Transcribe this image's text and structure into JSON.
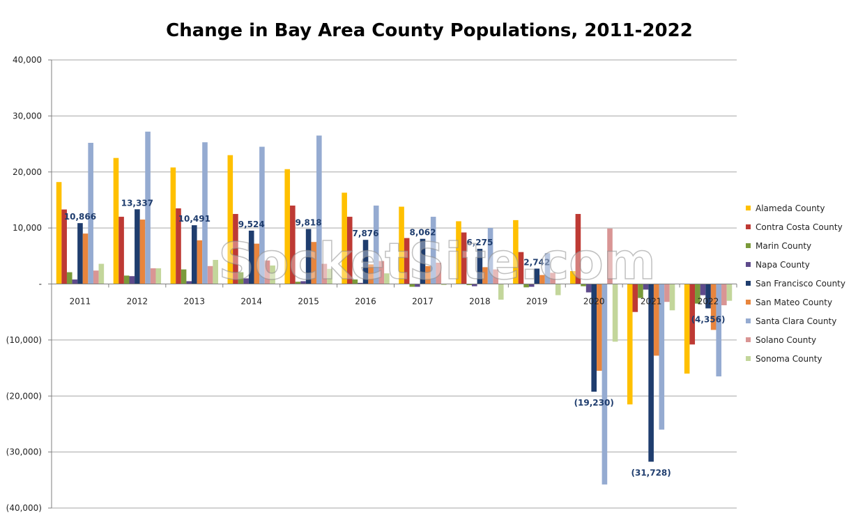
{
  "watermark": "SocketSite.com",
  "chart_data": {
    "type": "bar",
    "title": "Change in Bay Area County Populations, 2011-2022",
    "xlabel": "",
    "ylabel": "",
    "ylim": [
      -40000,
      40000
    ],
    "grid": true,
    "legend_position": "right",
    "y_ticks": [
      {
        "value": 40000,
        "label": "40,000"
      },
      {
        "value": 30000,
        "label": "30,000"
      },
      {
        "value": 20000,
        "label": "20,000"
      },
      {
        "value": 10000,
        "label": "10,000"
      },
      {
        "value": 0,
        "label": "-"
      },
      {
        "value": -10000,
        "label": "(10,000)"
      },
      {
        "value": -20000,
        "label": "(20,000)"
      },
      {
        "value": -30000,
        "label": "(30,000)"
      },
      {
        "value": -40000,
        "label": "(40,000)"
      }
    ],
    "categories": [
      "2011",
      "2012",
      "2013",
      "2014",
      "2015",
      "2016",
      "2017",
      "2018",
      "2019",
      "2020",
      "2021",
      "2022"
    ],
    "series": [
      {
        "name": "Alameda County",
        "color": "#FFC000",
        "values": [
          18200,
          22500,
          20800,
          23000,
          20500,
          16300,
          13800,
          11200,
          11400,
          2300,
          -21500,
          -16000
        ]
      },
      {
        "name": "Contra Costa County",
        "color": "#BE3A34",
        "values": [
          13300,
          12000,
          13500,
          12500,
          14000,
          12000,
          8200,
          9200,
          5700,
          12500,
          -5000,
          -10800
        ]
      },
      {
        "name": "Marin County",
        "color": "#7A9A3A",
        "values": [
          2100,
          1500,
          2600,
          2100,
          400,
          800,
          -500,
          -200,
          -600,
          -400,
          -2500,
          -3500
        ]
      },
      {
        "name": "Napa County",
        "color": "#5E4A8B",
        "values": [
          800,
          1400,
          500,
          1000,
          500,
          200,
          -500,
          -400,
          -500,
          -1500,
          -1000,
          -2000
        ]
      },
      {
        "name": "San Francisco County",
        "color": "#1F3D6E",
        "values": [
          10866,
          13337,
          10491,
          9524,
          9818,
          7876,
          8062,
          6275,
          2742,
          -19230,
          -31728,
          -4356
        ]
      },
      {
        "name": "San Mateo County",
        "color": "#E8853D",
        "values": [
          9000,
          11500,
          7800,
          7200,
          7500,
          3500,
          3200,
          3000,
          1600,
          -15500,
          -12800,
          -8200
        ]
      },
      {
        "name": "Santa Clara County",
        "color": "#95ABD1",
        "values": [
          25200,
          27200,
          25300,
          24500,
          26500,
          14000,
          12000,
          10000,
          5500,
          -35800,
          -26000,
          -16500
        ]
      },
      {
        "name": "Solano County",
        "color": "#D99594",
        "values": [
          2400,
          2800,
          3200,
          4200,
          3600,
          4100,
          3800,
          2600,
          2000,
          9900,
          -3200,
          -3800
        ]
      },
      {
        "name": "Sonoma County",
        "color": "#C3D69B",
        "values": [
          3600,
          2800,
          4300,
          3300,
          2700,
          1900,
          -200,
          -2800,
          -2000,
          -10300,
          -4700,
          -3000
        ]
      }
    ],
    "data_labels": [
      {
        "category": "2011",
        "series": "San Francisco County",
        "text": "10,866"
      },
      {
        "category": "2012",
        "series": "San Francisco County",
        "text": "13,337"
      },
      {
        "category": "2013",
        "series": "San Francisco County",
        "text": "10,491"
      },
      {
        "category": "2014",
        "series": "San Francisco County",
        "text": "9,524"
      },
      {
        "category": "2015",
        "series": "San Francisco County",
        "text": "9,818"
      },
      {
        "category": "2016",
        "series": "San Francisco County",
        "text": "7,876"
      },
      {
        "category": "2017",
        "series": "San Francisco County",
        "text": "8,062"
      },
      {
        "category": "2018",
        "series": "San Francisco County",
        "text": "6,275"
      },
      {
        "category": "2019",
        "series": "San Francisco County",
        "text": "2,742"
      },
      {
        "category": "2020",
        "series": "San Francisco County",
        "text": "(19,230)"
      },
      {
        "category": "2021",
        "series": "San Francisco County",
        "text": "(31,728)"
      },
      {
        "category": "2022",
        "series": "San Francisco County",
        "text": "(4,356)"
      }
    ]
  }
}
